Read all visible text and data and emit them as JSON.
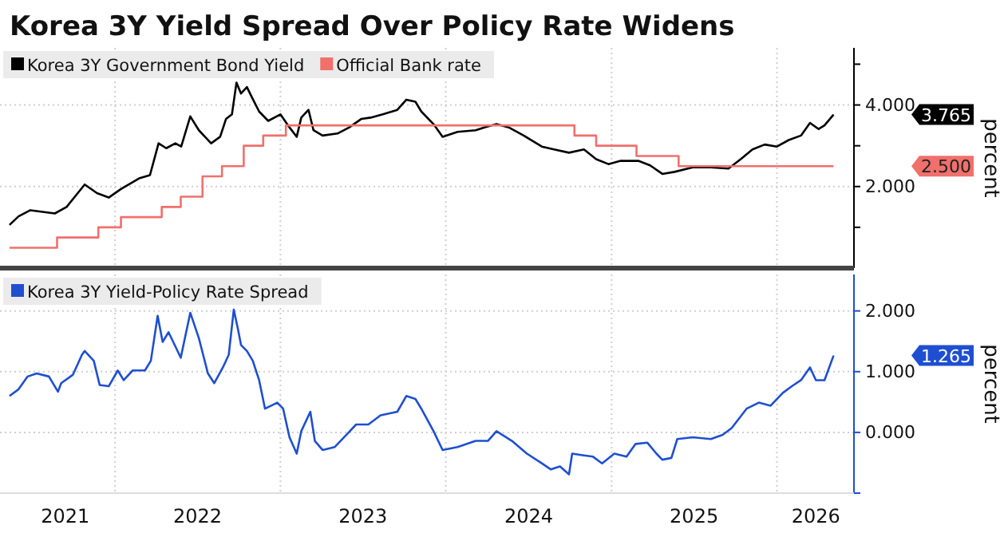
{
  "chart_data": [
    {
      "type": "line",
      "title": "Korea 3Y Yield Spread Over Policy Rate Widens",
      "ylabel": "percent",
      "legend": "top left",
      "grid": true,
      "tick_labels": "y",
      "xlim": [
        "2021-04-22",
        "2026-06-20"
      ],
      "ylim": [
        0,
        5.4
      ],
      "xticks": [
        {
          "value": "2022-01-01",
          "label": null
        },
        {
          "value": "2023-01-01",
          "label": null
        },
        {
          "value": "2024-01-01",
          "label": null
        },
        {
          "value": "2025-01-01",
          "label": null
        },
        {
          "value": "2026-01-01",
          "label": null
        }
      ],
      "yticks": [
        {
          "value": 1,
          "label": null
        },
        {
          "value": 2,
          "label": "2.000"
        },
        {
          "value": 3,
          "label": null
        },
        {
          "value": 4,
          "label": "4.000"
        },
        {
          "value": 5,
          "label": null
        }
      ],
      "series": [
        {
          "name": "Korea 3Y Government Bond Yield",
          "color": "#000000",
          "type": "line",
          "x": [
            "2021-05-13",
            "2021-06-02",
            "2021-06-28",
            "2021-08-21",
            "2021-09-16",
            "2021-10-26",
            "2021-11-22",
            "2021-12-18",
            "2022-01-14",
            "2022-02-23",
            "2022-03-19",
            "2022-04-07",
            "2022-04-24",
            "2022-05-14",
            "2022-05-27",
            "2022-06-16",
            "2022-07-05",
            "2022-08-01",
            "2022-08-21",
            "2022-09-03",
            "2022-09-16",
            "2022-09-26",
            "2022-10-06",
            "2022-10-19",
            "2022-10-30",
            "2022-11-15",
            "2022-12-05",
            "2023-01-01",
            "2023-01-21",
            "2023-02-06",
            "2023-02-16",
            "2023-03-04",
            "2023-03-15",
            "2023-04-04",
            "2023-05-07",
            "2023-06-02",
            "2023-06-29",
            "2023-07-19",
            "2023-08-15",
            "2023-09-16",
            "2023-10-06",
            "2023-10-26",
            "2023-11-08",
            "2023-12-05",
            "2023-12-25",
            "2024-01-27",
            "2024-03-07",
            "2024-03-26",
            "2024-04-22",
            "2024-05-19",
            "2024-06-21",
            "2024-07-31",
            "2024-08-27",
            "2024-09-29",
            "2024-11-01",
            "2024-11-28",
            "2024-12-25",
            "2025-01-21",
            "2025-03-01",
            "2025-03-27",
            "2025-04-23",
            "2025-05-20",
            "2025-06-29",
            "2025-08-08",
            "2025-09-16",
            "2025-10-13",
            "2025-11-08",
            "2025-12-05",
            "2026-01-01",
            "2026-01-27",
            "2026-02-23",
            "2026-03-15",
            "2026-04-03",
            "2026-04-16",
            "2026-05-06"
          ],
          "values": [
            1.06,
            1.27,
            1.42,
            1.34,
            1.5,
            2.05,
            1.84,
            1.73,
            1.94,
            2.2,
            2.28,
            3.06,
            2.94,
            3.06,
            2.98,
            3.72,
            3.38,
            3.06,
            3.22,
            3.66,
            3.77,
            4.55,
            4.28,
            4.44,
            4.19,
            3.84,
            3.61,
            3.77,
            3.45,
            3.22,
            3.69,
            3.88,
            3.38,
            3.25,
            3.3,
            3.45,
            3.66,
            3.69,
            3.77,
            3.88,
            4.13,
            4.08,
            3.84,
            3.53,
            3.22,
            3.34,
            3.38,
            3.45,
            3.53,
            3.45,
            3.25,
            2.98,
            2.91,
            2.83,
            2.91,
            2.67,
            2.55,
            2.63,
            2.63,
            2.52,
            2.31,
            2.36,
            2.47,
            2.47,
            2.44,
            2.67,
            2.91,
            3.03,
            2.98,
            3.14,
            3.25,
            3.56,
            3.41,
            3.5,
            3.765
          ]
        },
        {
          "name": "Official Bank rate",
          "color": "#f0706c",
          "type": "step",
          "x": [
            "2021-05-13",
            "2021-08-26",
            "2021-11-25",
            "2022-01-14",
            "2022-04-14",
            "2022-05-26",
            "2022-07-13",
            "2022-08-25",
            "2022-10-12",
            "2022-11-24",
            "2023-01-13",
            "2024-10-11",
            "2024-11-28",
            "2025-02-25",
            "2025-05-29",
            "2026-05-06"
          ],
          "values": [
            0.5,
            0.75,
            1.0,
            1.25,
            1.5,
            1.75,
            2.25,
            2.5,
            3.0,
            3.25,
            3.5,
            3.25,
            3.0,
            2.75,
            2.5,
            2.5
          ]
        }
      ],
      "annotations": [
        "3.765",
        "2.500"
      ]
    },
    {
      "type": "line",
      "ylabel": "percent",
      "legend": "top left",
      "grid": true,
      "xlim": [
        "2021-04-22",
        "2026-06-20"
      ],
      "ylim": [
        -1,
        2.6
      ],
      "xticks": [
        {
          "value": "2021-09-13",
          "label": "2021"
        },
        {
          "value": "2022-01-01",
          "label": null
        },
        {
          "value": "2022-07-02",
          "label": "2022"
        },
        {
          "value": "2023-01-01",
          "label": null
        },
        {
          "value": "2023-07-02",
          "label": "2023"
        },
        {
          "value": "2024-01-01",
          "label": null
        },
        {
          "value": "2024-07-02",
          "label": "2024"
        },
        {
          "value": "2025-01-01",
          "label": null
        },
        {
          "value": "2025-07-02",
          "label": "2025"
        },
        {
          "value": "2026-01-01",
          "label": null
        },
        {
          "value": "2026-03-28",
          "label": "2026"
        }
      ],
      "yticks": [
        {
          "value": -1,
          "label": null
        },
        {
          "value": 0,
          "label": "0.000"
        },
        {
          "value": 1,
          "label": "1.000"
        },
        {
          "value": 2,
          "label": "2.000"
        }
      ],
      "series": [
        {
          "name": "Korea 3Y Yield-Policy Rate Spread",
          "color": "#1f4fd1",
          "type": "line",
          "x": [
            "2021-05-13",
            "2021-06-02",
            "2021-06-22",
            "2021-07-12",
            "2021-08-08",
            "2021-08-28",
            "2021-09-04",
            "2021-09-30",
            "2021-10-20",
            "2021-10-26",
            "2021-11-15",
            "2021-11-28",
            "2021-12-18",
            "2022-01-07",
            "2022-01-20",
            "2022-02-09",
            "2022-03-08",
            "2022-03-21",
            "2022-04-05",
            "2022-04-16",
            "2022-04-29",
            "2022-05-26",
            "2022-06-16",
            "2022-07-05",
            "2022-07-25",
            "2022-08-08",
            "2022-08-27",
            "2022-09-09",
            "2022-09-20",
            "2022-09-29",
            "2022-10-06",
            "2022-10-19",
            "2022-11-01",
            "2022-11-15",
            "2022-11-28",
            "2022-12-25",
            "2023-01-07",
            "2023-01-21",
            "2023-02-06",
            "2023-02-16",
            "2023-03-08",
            "2023-03-18",
            "2023-04-04",
            "2023-05-01",
            "2023-05-28",
            "2023-06-17",
            "2023-07-14",
            "2023-08-10",
            "2023-09-16",
            "2023-10-06",
            "2023-10-26",
            "2023-11-08",
            "2023-12-05",
            "2023-12-25",
            "2024-01-27",
            "2024-03-07",
            "2024-04-03",
            "2024-04-22",
            "2024-05-26",
            "2024-06-28",
            "2024-07-31",
            "2024-08-20",
            "2024-09-09",
            "2024-09-29",
            "2024-10-06",
            "2024-11-01",
            "2024-11-21",
            "2024-12-11",
            "2025-01-07",
            "2025-02-03",
            "2025-02-23",
            "2025-03-21",
            "2025-04-10",
            "2025-04-23",
            "2025-05-13",
            "2025-05-26",
            "2025-06-29",
            "2025-08-08",
            "2025-09-03",
            "2025-09-23",
            "2025-10-26",
            "2025-11-22",
            "2025-12-18",
            "2026-01-14",
            "2026-02-03",
            "2026-02-23",
            "2026-03-15",
            "2026-03-28",
            "2026-04-16",
            "2026-05-06"
          ],
          "values": [
            0.6,
            0.71,
            0.92,
            0.97,
            0.92,
            0.67,
            0.81,
            0.95,
            1.28,
            1.34,
            1.18,
            0.78,
            0.76,
            1.02,
            0.86,
            1.02,
            1.02,
            1.18,
            1.92,
            1.49,
            1.65,
            1.23,
            1.97,
            1.55,
            0.97,
            0.81,
            1.07,
            1.28,
            2.02,
            1.71,
            1.44,
            1.34,
            1.18,
            0.86,
            0.39,
            0.49,
            0.39,
            -0.08,
            -0.35,
            0.02,
            0.34,
            -0.14,
            -0.29,
            -0.24,
            -0.03,
            0.13,
            0.13,
            0.28,
            0.34,
            0.6,
            0.55,
            0.39,
            0.02,
            -0.29,
            -0.24,
            -0.14,
            -0.14,
            0.02,
            -0.14,
            -0.35,
            -0.51,
            -0.61,
            -0.56,
            -0.69,
            -0.35,
            -0.38,
            -0.4,
            -0.51,
            -0.35,
            -0.4,
            -0.19,
            -0.17,
            -0.35,
            -0.45,
            -0.42,
            -0.11,
            -0.08,
            -0.11,
            -0.04,
            0.07,
            0.39,
            0.49,
            0.44,
            0.65,
            0.76,
            0.86,
            1.07,
            0.86,
            0.86,
            1.265
          ]
        }
      ],
      "annotations": [
        "1.265"
      ]
    }
  ]
}
